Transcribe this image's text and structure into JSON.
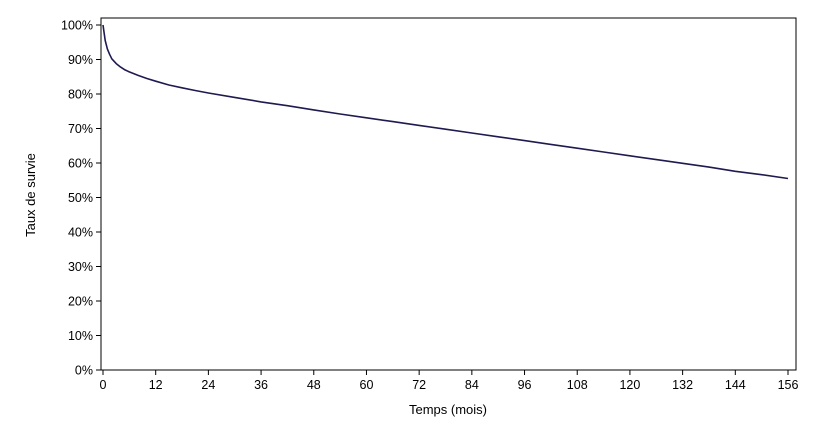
{
  "chart_data": {
    "type": "line",
    "title": "",
    "xlabel": "Temps (mois)",
    "ylabel": "Taux de survie",
    "xlim": [
      0,
      156
    ],
    "ylim": [
      0,
      100
    ],
    "x_ticks": [
      0,
      12,
      24,
      36,
      48,
      60,
      72,
      84,
      96,
      108,
      120,
      132,
      144,
      156
    ],
    "x_tick_labels": [
      "0",
      "12",
      "24",
      "36",
      "48",
      "60",
      "72",
      "84",
      "96",
      "108",
      "120",
      "132",
      "144",
      "156"
    ],
    "y_ticks": [
      0,
      10,
      20,
      30,
      40,
      50,
      60,
      70,
      80,
      90,
      100
    ],
    "y_tick_labels": [
      "0%",
      "10%",
      "20%",
      "30%",
      "40%",
      "50%",
      "60%",
      "70%",
      "80%",
      "90%",
      "100%"
    ],
    "grid": false,
    "legend": "none",
    "series": [
      {
        "color": "#1f1a4f",
        "x": [
          0,
          0.5,
          1,
          1.5,
          2,
          3,
          4,
          5,
          6,
          8,
          10,
          12,
          15,
          18,
          21,
          24,
          30,
          36,
          42,
          48,
          54,
          60,
          66,
          72,
          78,
          84,
          90,
          96,
          102,
          108,
          114,
          120,
          126,
          132,
          138,
          144,
          150,
          156
        ],
        "y": [
          100,
          95.5,
          93,
          91.5,
          90.2,
          88.8,
          87.8,
          87,
          86.4,
          85.4,
          84.5,
          83.7,
          82.6,
          81.8,
          81,
          80.3,
          79,
          77.7,
          76.6,
          75.4,
          74.2,
          73.1,
          72,
          70.9,
          69.8,
          68.7,
          67.6,
          66.5,
          65.4,
          64.3,
          63.2,
          62.1,
          61,
          59.9,
          58.8,
          57.6,
          56.6,
          55.5
        ]
      }
    ]
  }
}
